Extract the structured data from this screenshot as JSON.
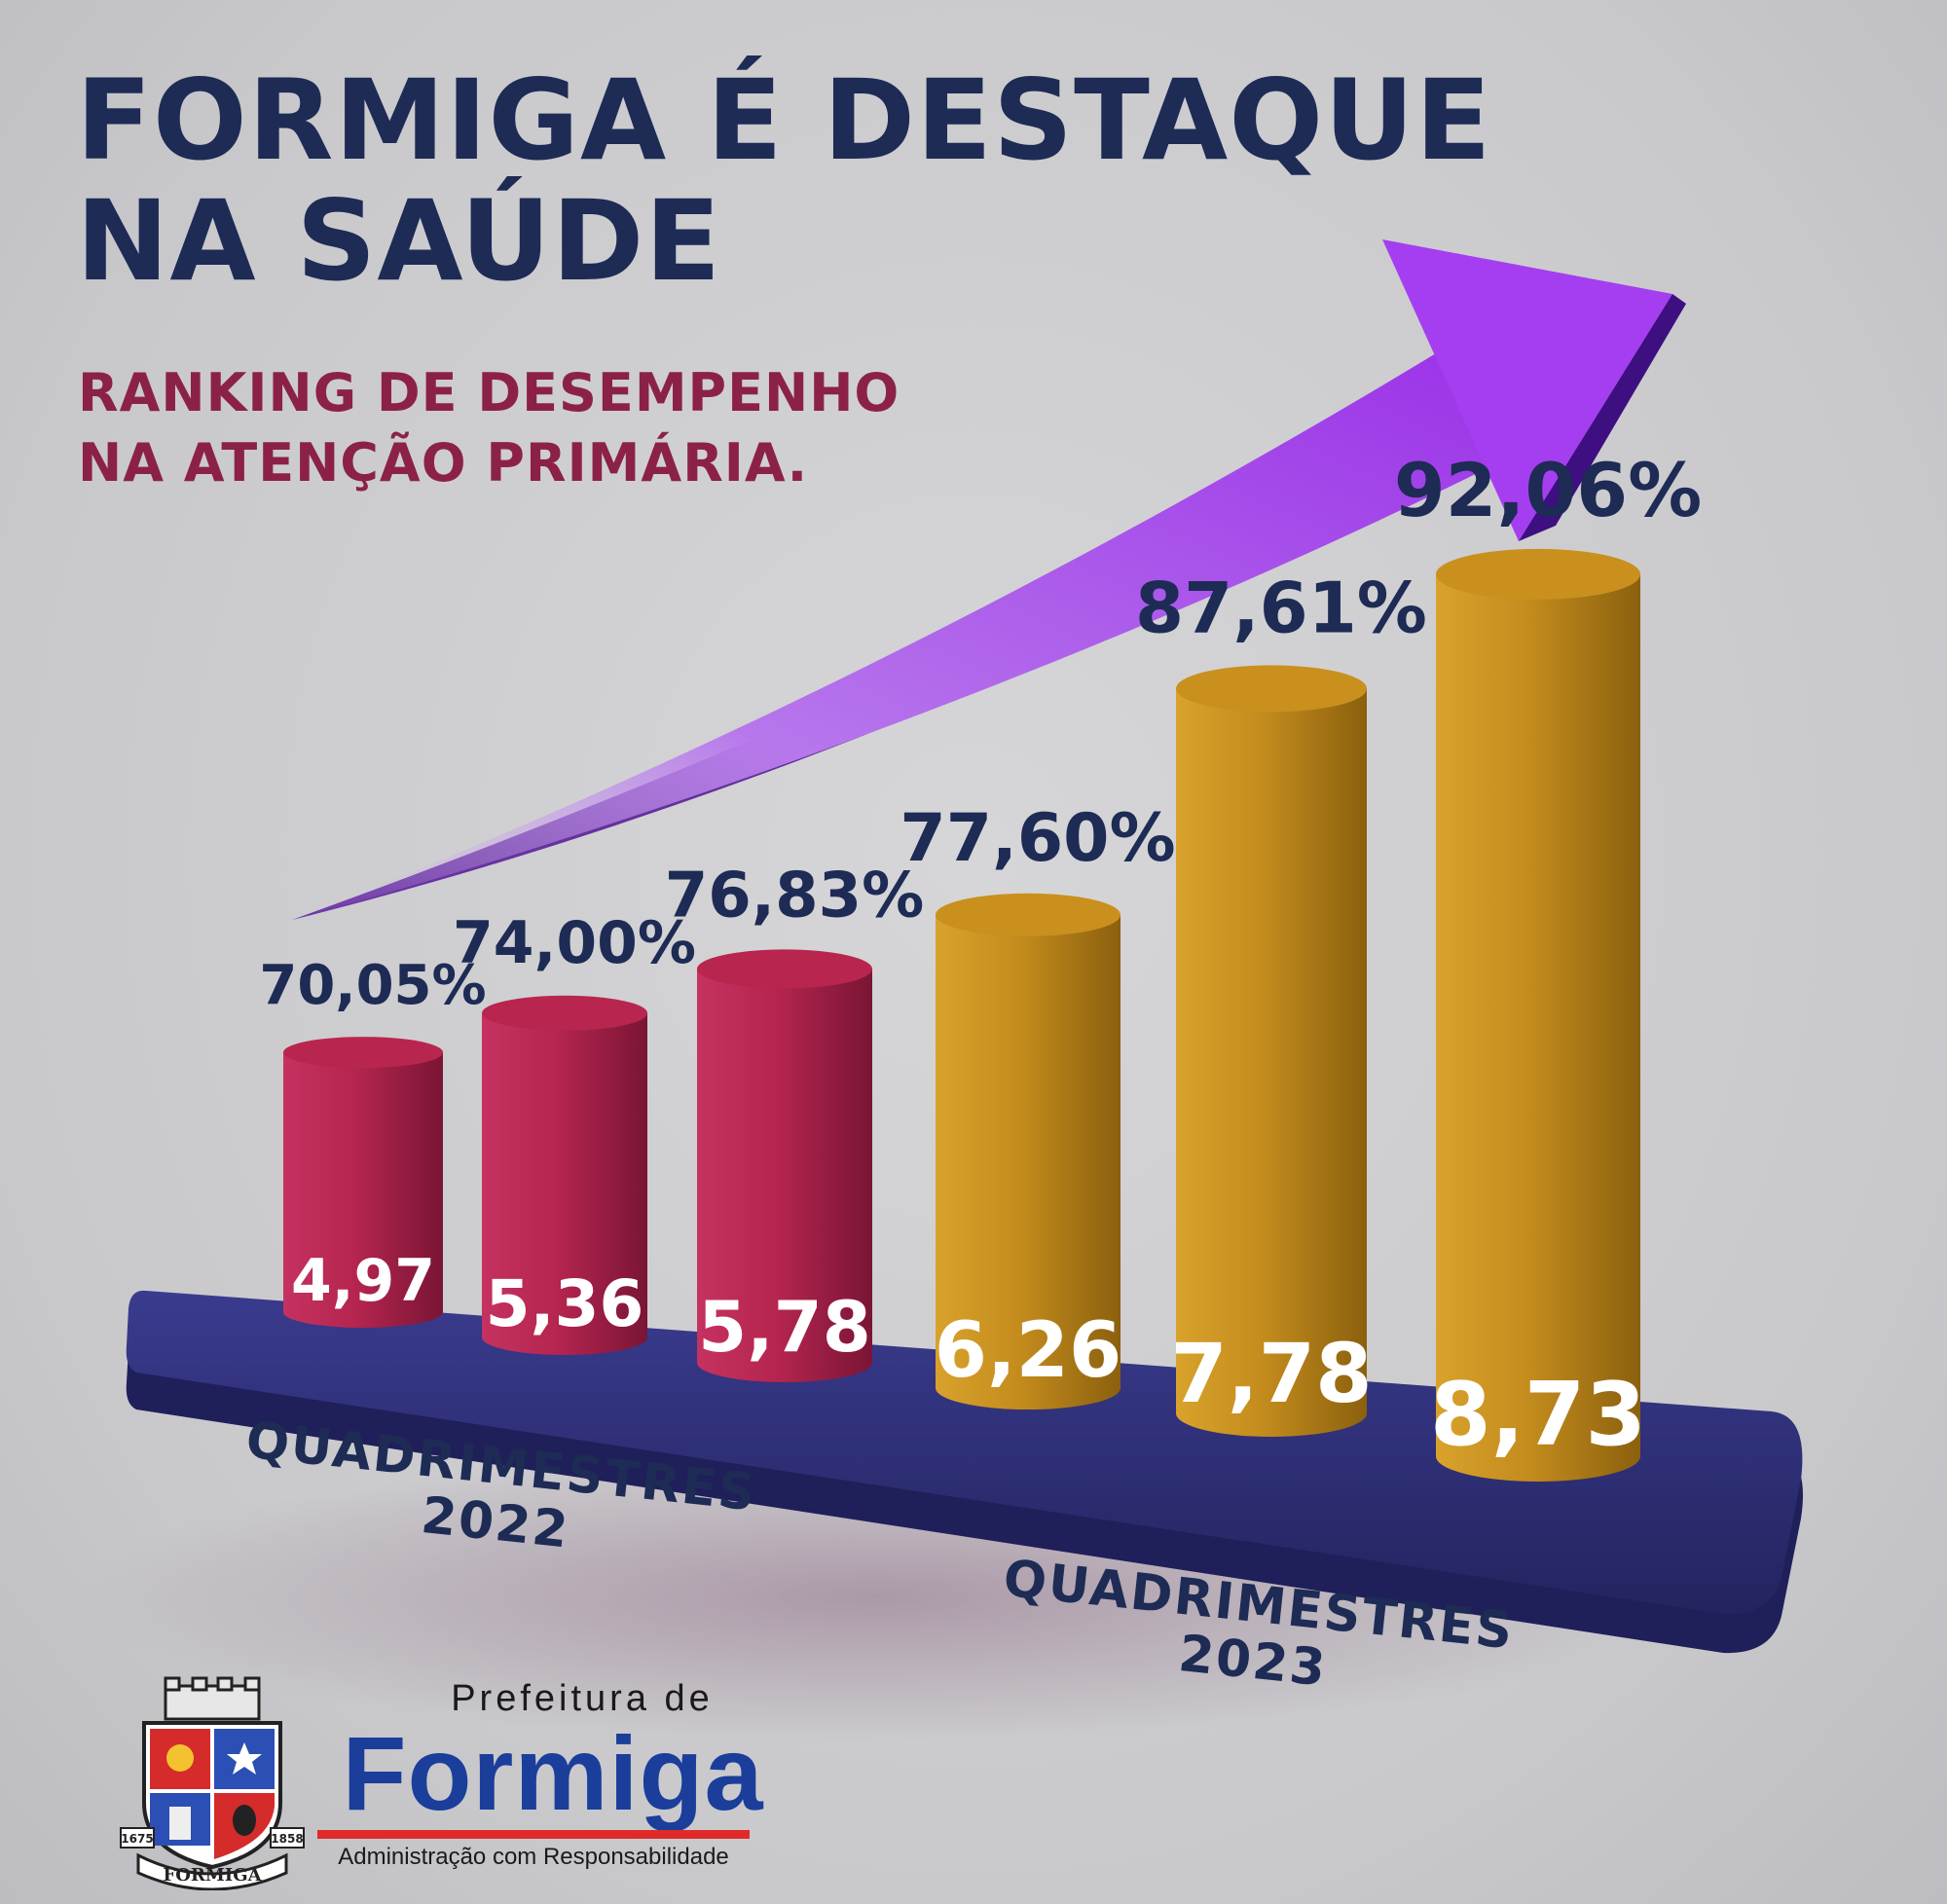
{
  "header": {
    "title_lines": [
      "FORMIGA É DESTAQUE",
      "NA SAÚDE"
    ],
    "subtitle_lines": [
      "RANKING DE DESEMPENHO",
      "NA ATENÇÃO PRIMÁRIA."
    ]
  },
  "chart_data": {
    "type": "bar",
    "title": "FORMIGA É DESTAQUE NA SAÚDE",
    "subtitle": "RANKING DE DESEMPENHO NA ATENÇÃO PRIMÁRIA.",
    "categories": [
      "4,97",
      "5,36",
      "5,78",
      "6,26",
      "7,78",
      "8,73"
    ],
    "values": [
      4.97,
      5.36,
      5.78,
      6.26,
      7.78,
      8.73
    ],
    "value_labels": [
      "4,97",
      "5,36",
      "5,78",
      "6,26",
      "7,78",
      "8,73"
    ],
    "percent_labels": [
      "70,05%",
      "74,00%",
      "76,83%",
      "77,60%",
      "87,61%",
      "92,06%"
    ],
    "percent_values": [
      70.05,
      74.0,
      76.83,
      77.6,
      87.61,
      92.06
    ],
    "groups": [
      {
        "label": "QUADRIMESTRES 2022",
        "label_lines": [
          "QUADRIMESTRES",
          "2022"
        ],
        "bar_indices": [
          0,
          1,
          2
        ],
        "color": "#b8264f"
      },
      {
        "label": "QUADRIMESTRES 2023",
        "label_lines": [
          "QUADRIMESTRES",
          "2023"
        ],
        "bar_indices": [
          3,
          4,
          5
        ],
        "color": "#c9901e"
      }
    ],
    "ylim": [
      0,
      10
    ],
    "grid": false,
    "legend": "none"
  },
  "colors": {
    "title": "#1d2b55",
    "subtitle": "#8c2147",
    "bar_2022": "#b8264f",
    "bar_2022_dark": "#7d1737",
    "bar_2023": "#c9901e",
    "bar_2023_dark": "#8e6410",
    "platform": "#2e2f79",
    "arrow": "#9a3fe0",
    "brand_blue": "#1b3e9b",
    "brand_red": "#e02a2a"
  },
  "logo": {
    "top_text": "Prefeitura de",
    "name": "Formiga",
    "tagline": "Administração com Responsabilidade",
    "crest_year_left": "1675",
    "crest_year_right": "1858",
    "crest_banner": "FORMIGA"
  },
  "icons": {
    "crest": "city-coat-of-arms-icon",
    "arrow": "trend-up-arrow-icon"
  }
}
